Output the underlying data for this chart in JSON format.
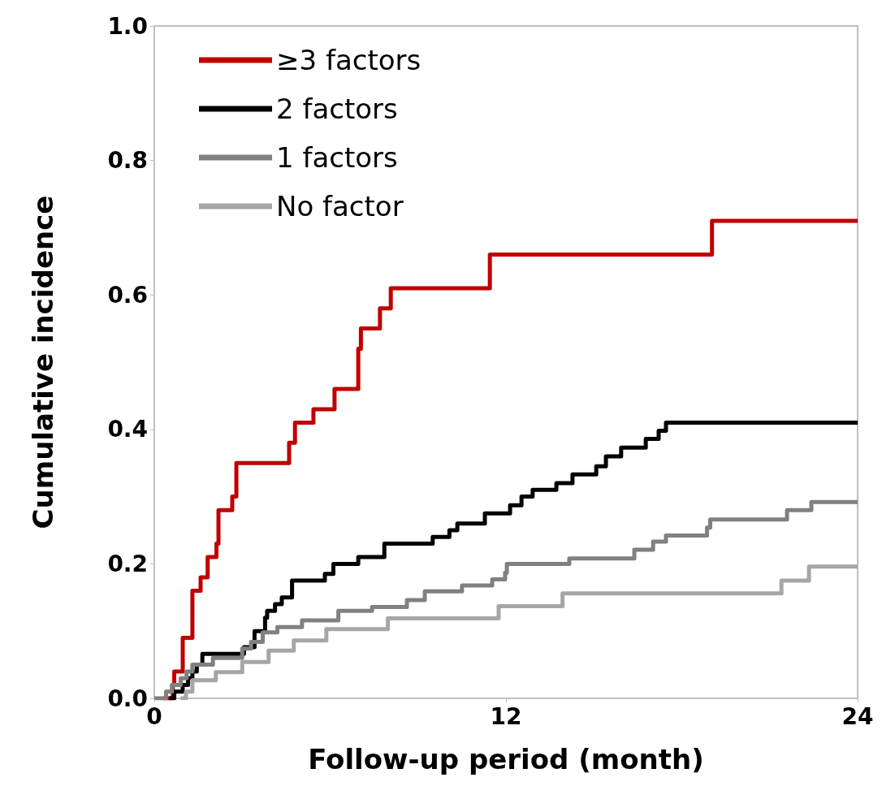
{
  "chart_data": {
    "type": "step",
    "xlabel": "Follow-up period (month)",
    "ylabel": "Cumulative incidence",
    "xlim": [
      0,
      24
    ],
    "xticks": [
      0,
      12,
      24
    ],
    "ylim": [
      0,
      1
    ],
    "yticks": [
      {
        "value": 0,
        "label": "0.0"
      },
      {
        "value": 0.2,
        "label": "0.2"
      },
      {
        "value": 0.4,
        "label": "0.4"
      },
      {
        "value": 0.6,
        "label": "0.6"
      },
      {
        "value": 0.8,
        "label": "0.8"
      },
      {
        "value": 1,
        "label": "1.0"
      }
    ],
    "legend": "top left",
    "grid": false,
    "marker": "none",
    "line_style": "solid",
    "series": [
      {
        "name": "≥3 factors",
        "color": "#c00000",
        "x": [
          0.3,
          0.63,
          0.68,
          0.97,
          1.3,
          1.58,
          1.82,
          2.12,
          2.19,
          2.66,
          2.8,
          4.6,
          4.8,
          5.43,
          6.15,
          6.96,
          7.05,
          7.7,
          8.07,
          11.45,
          19.03,
          24
        ],
        "values": [
          0,
          0.02,
          0.04,
          0.09,
          0.16,
          0.18,
          0.21,
          0.23,
          0.28,
          0.3,
          0.35,
          0.38,
          0.41,
          0.43,
          0.46,
          0.52,
          0.55,
          0.58,
          0.61,
          0.66,
          0.71,
          0.71
        ]
      },
      {
        "name": "2 factors",
        "color": "#000000",
        "x": [
          0.5,
          0.68,
          0.97,
          1.15,
          1.3,
          1.45,
          1.64,
          3.06,
          3.42,
          3.78,
          3.85,
          4.12,
          4.35,
          4.7,
          5.82,
          6.11,
          6.96,
          7.85,
          9.5,
          10.07,
          10.34,
          11.28,
          12.14,
          12.53,
          12.91,
          13.72,
          14.27,
          15.08,
          15.41,
          15.93,
          16.77,
          17.21,
          17.46,
          24
        ],
        "values": [
          0,
          0.01,
          0.02,
          0.03,
          0.04,
          0.05,
          0.066,
          0.076,
          0.1,
          0.12,
          0.13,
          0.14,
          0.15,
          0.175,
          0.185,
          0.2,
          0.21,
          0.23,
          0.24,
          0.25,
          0.26,
          0.275,
          0.287,
          0.3,
          0.31,
          0.32,
          0.333,
          0.345,
          0.36,
          0.373,
          0.386,
          0.398,
          0.41,
          0.41
        ]
      },
      {
        "name": "1 factors",
        "color": "#808080",
        "x": [
          0,
          0.4,
          0.6,
          0.9,
          1.1,
          1.3,
          2.0,
          3.0,
          3.3,
          3.7,
          4.2,
          5.04,
          6.28,
          7.43,
          8.62,
          9.23,
          10.5,
          11.53,
          11.97,
          12.03,
          14.16,
          16.38,
          17.02,
          17.46,
          18.86,
          18.97,
          21.59,
          22.42,
          24
        ],
        "values": [
          0,
          0.01,
          0.02,
          0.03,
          0.04,
          0.05,
          0.06,
          0.074,
          0.084,
          0.098,
          0.106,
          0.116,
          0.13,
          0.136,
          0.146,
          0.159,
          0.168,
          0.177,
          0.187,
          0.2,
          0.208,
          0.221,
          0.233,
          0.242,
          0.254,
          0.266,
          0.28,
          0.292,
          0.292
        ]
      },
      {
        "name": "No factor",
        "color": "#a6a6a6",
        "x": [
          0.9,
          1.08,
          1.3,
          2.1,
          3.0,
          3.9,
          4.76,
          5.87,
          7.97,
          11.75,
          13.93,
          21.4,
          22.34,
          24
        ],
        "values": [
          0,
          0.01,
          0.027,
          0.039,
          0.054,
          0.071,
          0.086,
          0.103,
          0.119,
          0.137,
          0.156,
          0.175,
          0.196,
          0.196
        ]
      }
    ]
  }
}
